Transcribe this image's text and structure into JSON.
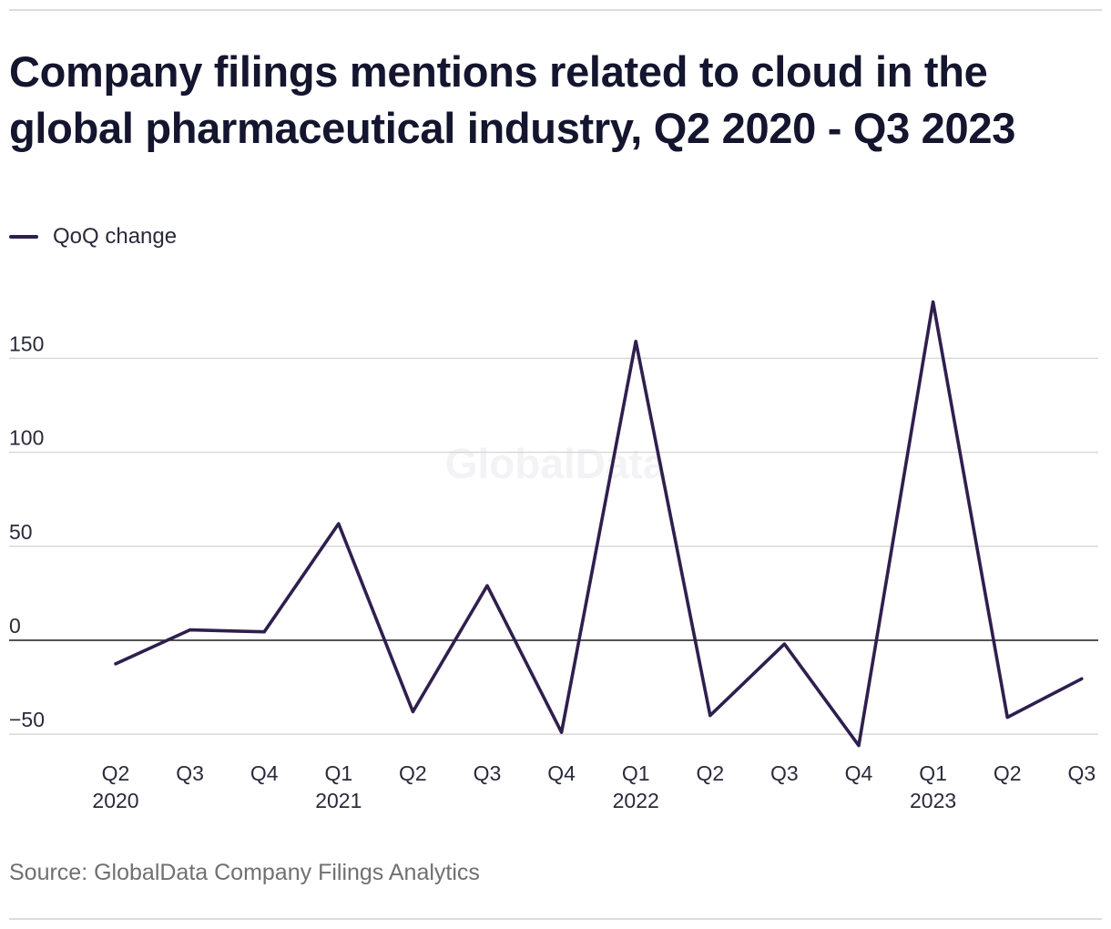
{
  "chart_data": {
    "type": "line",
    "title": "Company filings mentions related to cloud in the global pharmaceutical industry, Q2 2020 - Q3 2023",
    "categories": [
      "Q2 2020",
      "Q3 2020",
      "Q4 2020",
      "Q1 2021",
      "Q2 2021",
      "Q3 2021",
      "Q4 2021",
      "Q1 2022",
      "Q2 2022",
      "Q3 2022",
      "Q4 2022",
      "Q1 2023",
      "Q2 2023",
      "Q3 2023"
    ],
    "tick_labels": [
      {
        "quarter": "Q2",
        "year": "2020"
      },
      {
        "quarter": "Q3",
        "year": ""
      },
      {
        "quarter": "Q4",
        "year": ""
      },
      {
        "quarter": "Q1",
        "year": "2021"
      },
      {
        "quarter": "Q2",
        "year": ""
      },
      {
        "quarter": "Q3",
        "year": ""
      },
      {
        "quarter": "Q4",
        "year": ""
      },
      {
        "quarter": "Q1",
        "year": "2022"
      },
      {
        "quarter": "Q2",
        "year": ""
      },
      {
        "quarter": "Q3",
        "year": ""
      },
      {
        "quarter": "Q4",
        "year": ""
      },
      {
        "quarter": "Q1",
        "year": "2023"
      },
      {
        "quarter": "Q2",
        "year": ""
      },
      {
        "quarter": "Q3",
        "year": ""
      }
    ],
    "series": [
      {
        "name": "QoQ change",
        "color": "#2f1f4e",
        "values": [
          -12.5,
          5.5,
          4.5,
          62,
          -38,
          29,
          -49,
          159,
          -40,
          -2,
          -56,
          180,
          -41,
          -20.5
        ]
      }
    ],
    "y_ticks": [
      -50,
      0,
      50,
      100,
      150
    ],
    "y_tick_labels": [
      "−50",
      "0",
      "50",
      "100",
      "150"
    ],
    "ylim": [
      -60,
      190
    ],
    "grid": true,
    "legend_position": "top-left",
    "watermark": "GlobalData"
  },
  "source": "Source: GlobalData Company Filings Analytics"
}
